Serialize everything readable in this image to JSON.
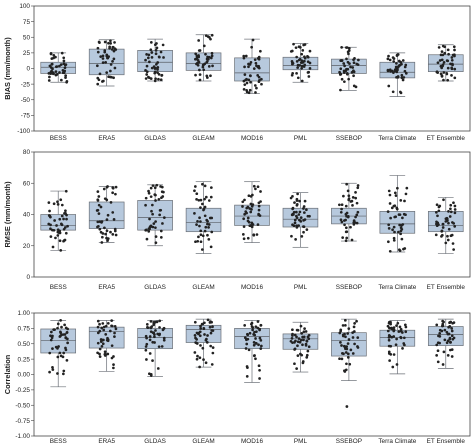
{
  "chart_data": [
    {
      "type": "box",
      "ylabel": "BIAS (mm/month)",
      "ylim": [
        -100,
        100
      ],
      "yticks": [
        100,
        75,
        50,
        25,
        0,
        -25,
        -50,
        -75,
        -100
      ],
      "categories": [
        "BESS",
        "ERA5",
        "GLDAS",
        "GLEAM",
        "MOD16",
        "PML",
        "SSEBOP",
        "Terra Climate",
        "ET Ensemble"
      ],
      "boxes": [
        {
          "q1": -8,
          "median": 2,
          "q3": 10,
          "whislo": -22,
          "whishi": 25
        },
        {
          "q1": -10,
          "median": 8,
          "q3": 31,
          "whislo": -28,
          "whishi": 46
        },
        {
          "q1": -5,
          "median": 10,
          "q3": 29,
          "whislo": -20,
          "whishi": 47
        },
        {
          "q1": -3,
          "median": 8,
          "q3": 25,
          "whislo": -20,
          "whishi": 54
        },
        {
          "q1": -20,
          "median": -7,
          "q3": 17,
          "whislo": -40,
          "whishi": 47
        },
        {
          "q1": -2,
          "median": 5,
          "q3": 18,
          "whislo": -22,
          "whishi": 40
        },
        {
          "q1": -8,
          "median": 5,
          "q3": 15,
          "whislo": -35,
          "whishi": 34
        },
        {
          "q1": -15,
          "median": -6,
          "q3": 10,
          "whislo": -45,
          "whishi": 25
        },
        {
          "q1": -5,
          "median": 7,
          "q3": 22,
          "whislo": -20,
          "whishi": 38
        }
      ]
    },
    {
      "type": "box",
      "ylabel": "RMSE (mm/month)",
      "ylim": [
        0,
        80
      ],
      "yticks": [
        80,
        60,
        40,
        20,
        0
      ],
      "categories": [
        "BESS",
        "ERA5",
        "GLDAS",
        "GLEAM",
        "MOD16",
        "PML",
        "SSEBOP",
        "Terra Climate",
        "ET Ensemble"
      ],
      "boxes": [
        {
          "q1": 30,
          "median": 33,
          "q3": 40,
          "whislo": 17,
          "whishi": 55
        },
        {
          "q1": 31,
          "median": 36,
          "q3": 48,
          "whislo": 22,
          "whishi": 58
        },
        {
          "q1": 30,
          "median": 38,
          "q3": 49,
          "whislo": 20,
          "whishi": 59
        },
        {
          "q1": 29,
          "median": 35,
          "q3": 44,
          "whislo": 15,
          "whishi": 61
        },
        {
          "q1": 33,
          "median": 39,
          "q3": 46,
          "whislo": 22,
          "whishi": 61
        },
        {
          "q1": 32,
          "median": 37,
          "q3": 44,
          "whislo": 19,
          "whishi": 54
        },
        {
          "q1": 34,
          "median": 39,
          "q3": 44,
          "whislo": 23,
          "whishi": 60
        },
        {
          "q1": 28,
          "median": 34,
          "q3": 42,
          "whislo": 16,
          "whishi": 65
        },
        {
          "q1": 29,
          "median": 33,
          "q3": 42,
          "whislo": 15,
          "whishi": 51
        }
      ]
    },
    {
      "type": "box",
      "ylabel": "Correlation",
      "ylim": [
        -1.0,
        1.0
      ],
      "yticks": [
        1.0,
        0.75,
        0.5,
        0.25,
        0.0,
        -0.25,
        -0.5,
        -0.75,
        -1.0
      ],
      "ytick_labels": [
        "1.00",
        "0.75",
        "0.50",
        "0.25",
        "0.00",
        "-0.25",
        "-0.50",
        "-0.75",
        "-1.00"
      ],
      "categories": [
        "BESS",
        "ERA5",
        "GLDAS",
        "GLEAM",
        "MOD16",
        "PML",
        "SSEBOP",
        "Terra Climate",
        "ET Ensemble"
      ],
      "boxes": [
        {
          "q1": 0.35,
          "median": 0.55,
          "q3": 0.74,
          "whislo": -0.2,
          "whishi": 0.88
        },
        {
          "q1": 0.43,
          "median": 0.7,
          "q3": 0.77,
          "whislo": 0.05,
          "whishi": 0.88
        },
        {
          "q1": 0.42,
          "median": 0.6,
          "q3": 0.75,
          "whislo": -0.03,
          "whishi": 0.88
        },
        {
          "q1": 0.52,
          "median": 0.73,
          "q3": 0.8,
          "whislo": 0.12,
          "whishi": 0.9
        },
        {
          "q1": 0.42,
          "median": 0.62,
          "q3": 0.75,
          "whislo": -0.13,
          "whishi": 0.88
        },
        {
          "q1": 0.41,
          "median": 0.58,
          "q3": 0.66,
          "whislo": 0.04,
          "whishi": 0.85
        },
        {
          "q1": 0.3,
          "median": 0.55,
          "q3": 0.68,
          "whislo": -0.1,
          "whishi": 0.9
        },
        {
          "q1": 0.46,
          "median": 0.6,
          "q3": 0.72,
          "whislo": 0.01,
          "whishi": 0.88
        },
        {
          "q1": 0.47,
          "median": 0.65,
          "q3": 0.78,
          "whislo": 0.1,
          "whishi": 0.9
        }
      ],
      "outliers": [
        {
          "category": "SSEBOP",
          "value": -0.52
        }
      ]
    }
  ]
}
